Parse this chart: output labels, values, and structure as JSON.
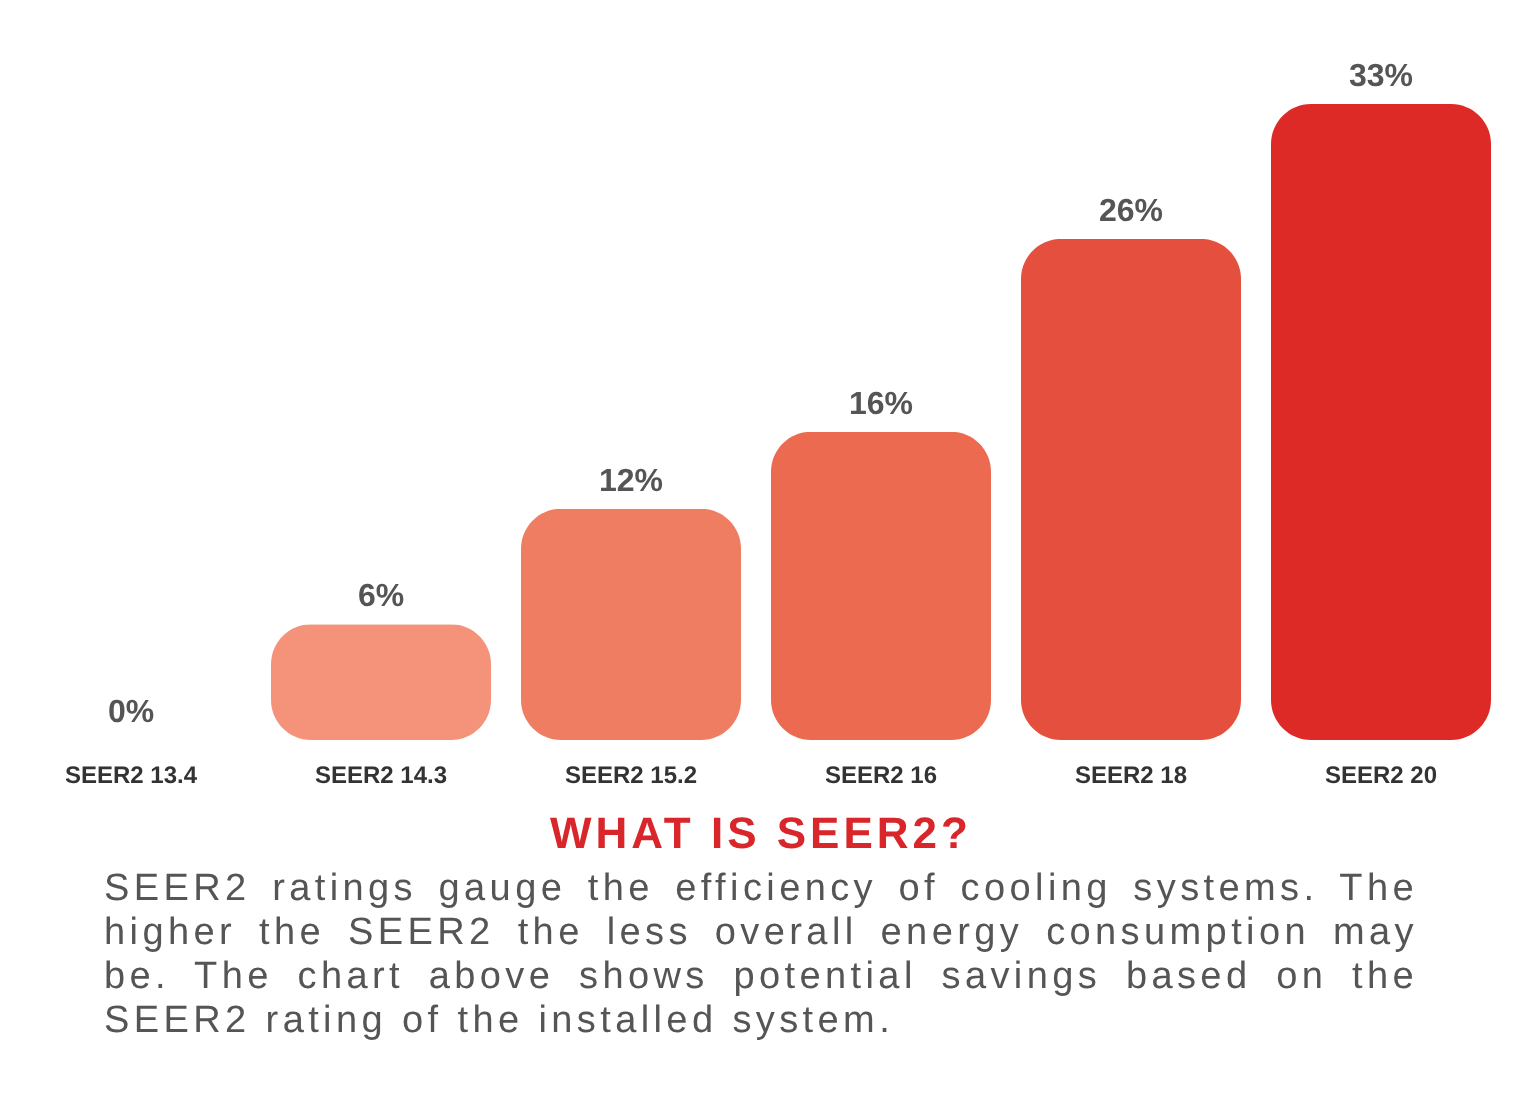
{
  "chart_data": {
    "type": "bar",
    "title": "WHAT IS SEER2?",
    "categories": [
      "SEER2 13.4",
      "SEER2 14.3",
      "SEER2 15.2",
      "SEER2 16",
      "SEER2 18",
      "SEER2 20"
    ],
    "values": [
      0,
      6,
      12,
      16,
      26,
      33
    ],
    "value_labels": [
      "0%",
      "6%",
      "12%",
      "16%",
      "26%",
      "33%"
    ],
    "colors": [
      "#f4a58e",
      "#f4937a",
      "#ef7d62",
      "#ec6a4f",
      "#e5503e",
      "#dd2a27"
    ],
    "tick_labels": "x",
    "annotations": [
      "SEER2 ratings gauge the efficiency of cooling systems. The higher the SEER2 the less overall energy consumption may be. The chart above shows potential savings based on the SEER2 rating of the installed system."
    ]
  }
}
